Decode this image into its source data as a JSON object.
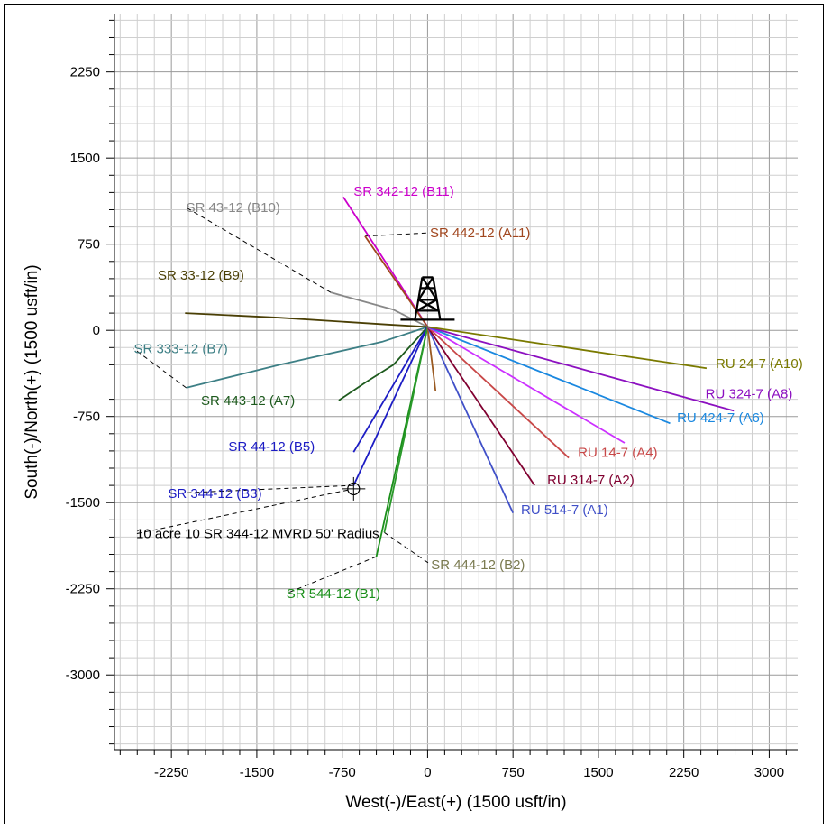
{
  "chart_data": {
    "type": "line",
    "title": "",
    "xlabel": "West(-)/East(+) (1500 usft/in)",
    "ylabel": "South(-)/North(+) (1500 usft/in)",
    "xlim": [
      -2750,
      3250
    ],
    "ylim": [
      -3650,
      2750
    ],
    "x_ticks": [
      -2250,
      -1500,
      -750,
      0,
      750,
      1500,
      2250,
      3000
    ],
    "y_ticks": [
      2250,
      1500,
      750,
      0,
      -750,
      -1500,
      -2250,
      -3000
    ],
    "x_tick_labels": [
      "-2250",
      "-1500",
      "-750",
      "0",
      "750",
      "1500",
      "2250",
      "3000"
    ],
    "y_tick_labels": [
      "2250",
      "1500",
      "750",
      "0",
      "-750",
      "-1500",
      "-2250",
      "-3000"
    ],
    "grid": true,
    "grid_minor_step": 150,
    "grid_major_step": 750,
    "series": [
      {
        "name": "SR 342-12 (B11)",
        "color": "#cc00cc",
        "x": [
          0,
          -740
        ],
        "y": [
          30,
          1160
        ]
      },
      {
        "name": "SR 442-12 (A11)",
        "color": "#a0461e",
        "x": [
          0,
          -550
        ],
        "y": [
          30,
          820
        ]
      },
      {
        "name": "SR 43-12 (B10)",
        "color": "#888888",
        "x": [
          0,
          -300,
          -850
        ],
        "y": [
          30,
          180,
          330
        ]
      },
      {
        "name": "SR 33-12 (B9)",
        "color": "#4a3f05",
        "x": [
          0,
          -350,
          -1300,
          -2130
        ],
        "y": [
          30,
          50,
          110,
          150
        ]
      },
      {
        "name": "SR 333-12 (B7)",
        "color": "#3d7f85",
        "x": [
          0,
          -400,
          -1300,
          -2120
        ],
        "y": [
          30,
          -100,
          -300,
          -500
        ]
      },
      {
        "name": "SR 443-12 (A7)",
        "color": "#1d5a1d",
        "x": [
          0,
          -300,
          -540,
          -780
        ],
        "y": [
          30,
          -300,
          -450,
          -610
        ]
      },
      {
        "name": "SR 44-12 (B5)",
        "color": "#1c1cc4",
        "x": [
          0,
          -650
        ],
        "y": [
          30,
          -1060
        ]
      },
      {
        "name": "SR 344-12 (B3)",
        "color": "#1c1cc4",
        "x": [
          0,
          -650
        ],
        "y": [
          30,
          -1350
        ]
      },
      {
        "name": "SR 544-12 (B1)",
        "color": "#1a8f1a",
        "x": [
          0,
          -450
        ],
        "y": [
          30,
          -1970
        ]
      },
      {
        "name": "SR 444-12 (B2)",
        "color": "#2a9a2a",
        "x": [
          0,
          -380
        ],
        "y": [
          30,
          -1760
        ]
      },
      {
        "name": "",
        "color": "#9a5a22",
        "x": [
          0,
          70
        ],
        "y": [
          30,
          -530
        ]
      },
      {
        "name": "RU 514-7 (A1)",
        "color": "#4050c8",
        "x": [
          0,
          750
        ],
        "y": [
          30,
          -1590
        ]
      },
      {
        "name": "RU 314-7 (A2)",
        "color": "#800030",
        "x": [
          0,
          940
        ],
        "y": [
          30,
          -1350
        ]
      },
      {
        "name": "RU 14-7 (A4)",
        "color": "#c84848",
        "x": [
          0,
          1240
        ],
        "y": [
          30,
          -1110
        ]
      },
      {
        "name": "",
        "color": "#cc30ff",
        "x": [
          0,
          1730
        ],
        "y": [
          30,
          -980
        ]
      },
      {
        "name": "RU 424-7 (A6)",
        "color": "#1a88e0",
        "x": [
          0,
          2130
        ],
        "y": [
          30,
          -810
        ]
      },
      {
        "name": "RU 324-7 (A8)",
        "color": "#8c10c0",
        "x": [
          0,
          2690
        ],
        "y": [
          30,
          -700
        ]
      },
      {
        "name": "RU 24-7 (A10)",
        "color": "#7a7a00",
        "x": [
          0,
          2450
        ],
        "y": [
          30,
          -330
        ]
      }
    ],
    "labels": [
      {
        "text": "SR 342-12 (B11)",
        "color": "#cc00cc",
        "x": -650,
        "y": 1170,
        "anchor": "start",
        "leader": false
      },
      {
        "text": "SR 442-12 (A11)",
        "color": "#a0461e",
        "x": 20,
        "y": 810,
        "anchor": "start",
        "leader": true,
        "lx": -550,
        "ly": 820
      },
      {
        "text": "SR 43-12 (B10)",
        "color": "#888888",
        "x": -2120,
        "y": 1030,
        "anchor": "start",
        "leader": true,
        "lx": -850,
        "ly": 330
      },
      {
        "text": "SR 33-12 (B9)",
        "color": "#4a3f05",
        "x": -2370,
        "y": 440,
        "anchor": "start",
        "leader": false
      },
      {
        "text": "SR 333-12 (B7)",
        "color": "#3d7f85",
        "x": -2580,
        "y": -200,
        "anchor": "start",
        "leader": true,
        "lx": -2120,
        "ly": -500
      },
      {
        "text": "SR 443-12 (A7)",
        "color": "#1d5a1d",
        "x": -1990,
        "y": -650,
        "anchor": "start",
        "leader": false
      },
      {
        "text": "SR 44-12 (B5)",
        "color": "#1c1cc4",
        "x": -1750,
        "y": -1050,
        "anchor": "start",
        "leader": false
      },
      {
        "text": "SR 344-12 (B3)",
        "color": "#1c1cc4",
        "x": -2280,
        "y": -1460,
        "anchor": "start",
        "leader": true,
        "lx": -650,
        "ly": -1350
      },
      {
        "text": "10 acre 10 SR 344-12 MVRD 50' Radius",
        "color": "#000000",
        "x": -2560,
        "y": -1810,
        "anchor": "start",
        "leader": true,
        "lx": -700,
        "ly": -1390
      },
      {
        "text": "SR 444-12 (B2)",
        "color": "#7a7a50",
        "x": 30,
        "y": -2080,
        "anchor": "start",
        "leader": true,
        "lx": -380,
        "ly": -1760
      },
      {
        "text": "SR 544-12 (B1)",
        "color": "#1a8f1a",
        "x": -1240,
        "y": -2330,
        "anchor": "start",
        "leader": true,
        "lx": -450,
        "ly": -1970
      },
      {
        "text": "RU 514-7 (A1)",
        "color": "#4050c8",
        "x": 820,
        "y": -1600,
        "anchor": "start",
        "leader": false
      },
      {
        "text": "RU 314-7 (A2)",
        "color": "#800030",
        "x": 1050,
        "y": -1340,
        "anchor": "start",
        "leader": false
      },
      {
        "text": "RU 14-7 (A4)",
        "color": "#c84848",
        "x": 1320,
        "y": -1100,
        "anchor": "start",
        "leader": false
      },
      {
        "text": "RU 424-7 (A6)",
        "color": "#1a88e0",
        "x": 2190,
        "y": -800,
        "anchor": "start",
        "leader": false
      },
      {
        "text": "RU 324-7 (A8)",
        "color": "#8c10c0",
        "x": 2440,
        "y": -590,
        "anchor": "start",
        "leader": false
      },
      {
        "text": "RU 24-7 (A10)",
        "color": "#7a7a00",
        "x": 2530,
        "y": -330,
        "anchor": "start",
        "leader": false
      }
    ]
  }
}
